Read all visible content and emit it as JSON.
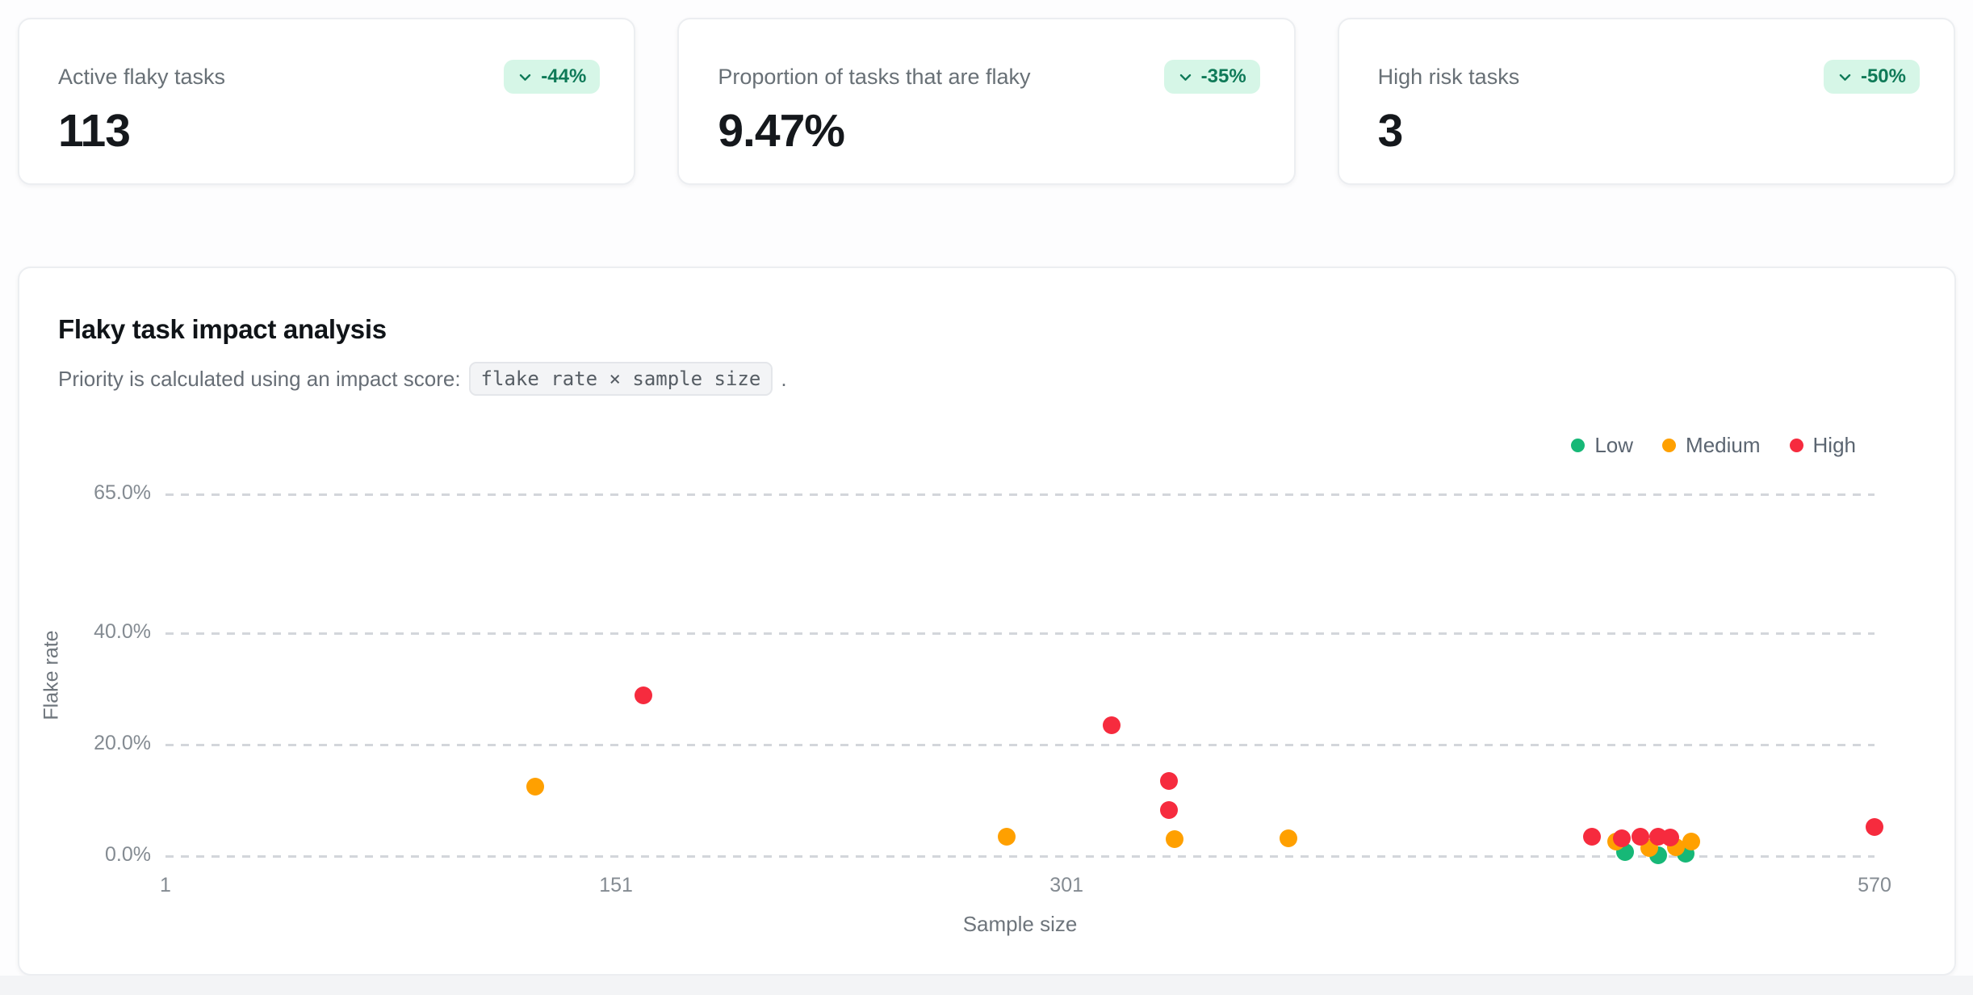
{
  "stat_cards": [
    {
      "label": "Active flaky tasks",
      "value": "113",
      "delta": "-44%",
      "delta_direction": "down"
    },
    {
      "label": "Proportion of tasks that are flaky",
      "value": "9.47%",
      "delta": "-35%",
      "delta_direction": "down"
    },
    {
      "label": "High risk tasks",
      "value": "3",
      "delta": "-50%",
      "delta_direction": "down"
    }
  ],
  "colors": {
    "badge_bg": "#d6f6e7",
    "badge_text": "#0f7a58",
    "low": "#17b877",
    "medium": "#ffa000",
    "high": "#f62b3e"
  },
  "chart_card": {
    "title": "Flaky task impact analysis",
    "subtitle_prefix": "Priority is calculated using an impact score:",
    "subtitle_code": "flake rate × sample size",
    "subtitle_suffix": "."
  },
  "chart_data": {
    "type": "scatter",
    "xlabel": "Sample size",
    "ylabel": "Flake rate",
    "xlim": [
      1,
      570
    ],
    "ylim": [
      0,
      65
    ],
    "grid": "horizontal-dashed",
    "legend_position": "top-right",
    "x_ticks": [
      {
        "label": "1",
        "value": 1
      },
      {
        "label": "151",
        "value": 151
      },
      {
        "label": "301",
        "value": 301
      },
      {
        "label": "570",
        "value": 570
      }
    ],
    "y_ticks": [
      {
        "label": "65.0%",
        "value": 65
      },
      {
        "label": "40.0%",
        "value": 40
      },
      {
        "label": "20.0%",
        "value": 20
      },
      {
        "label": "0.0%",
        "value": 0
      }
    ],
    "series": [
      {
        "name": "Low",
        "color": "#17b877",
        "points": [
          [
            487,
            0.7
          ],
          [
            498,
            0.2
          ],
          [
            507,
            0.4
          ]
        ]
      },
      {
        "name": "Medium",
        "color": "#ffa000",
        "points": [
          [
            124,
            12.5
          ],
          [
            281,
            3.5
          ],
          [
            337,
            3.0
          ],
          [
            375,
            3.2
          ],
          [
            484,
            2.6
          ],
          [
            495,
            1.5
          ],
          [
            504,
            1.6
          ],
          [
            509,
            2.6
          ]
        ]
      },
      {
        "name": "High",
        "color": "#f62b3e",
        "points": [
          [
            160,
            28.9
          ],
          [
            316,
            23.5
          ],
          [
            335,
            13.5
          ],
          [
            335,
            8.3
          ],
          [
            476,
            3.5
          ],
          [
            486,
            3.2
          ],
          [
            492,
            3.5
          ],
          [
            498,
            3.5
          ],
          [
            502,
            3.3
          ],
          [
            570,
            5.2
          ]
        ]
      }
    ]
  }
}
